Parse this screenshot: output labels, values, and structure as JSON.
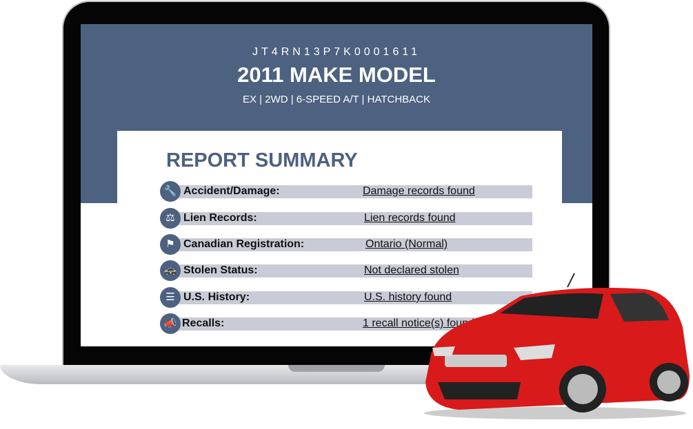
{
  "report": {
    "vin": "JT4RN13P7K0001611",
    "title": "2011 MAKE MODEL",
    "subtitle": "EX  |  2WD  | 6-SPEED A/T | HATCHBACK",
    "summary_heading": "REPORT SUMMARY",
    "rows": [
      {
        "icon": "wrench-icon",
        "label": "Accident/Damage:",
        "value": "Damage records found"
      },
      {
        "icon": "gavel-icon",
        "label": "Lien Records:",
        "value": "Lien records found"
      },
      {
        "icon": "flag-icon",
        "label": "Canadian Registration:",
        "value": "Ontario (Normal)"
      },
      {
        "icon": "police-car-icon",
        "label": "Stolen Status:",
        "value": "Not declared stolen"
      },
      {
        "icon": "us-flag-icon",
        "label": "U.S. History:",
        "value": "U.S. history found"
      },
      {
        "icon": "megaphone-icon",
        "label": "Recalls:",
        "value": "1 recall notice(s) found"
      }
    ]
  },
  "colors": {
    "header": "#4d6180",
    "row_bar": "#c9ccd6",
    "car": "#d81a1a"
  }
}
